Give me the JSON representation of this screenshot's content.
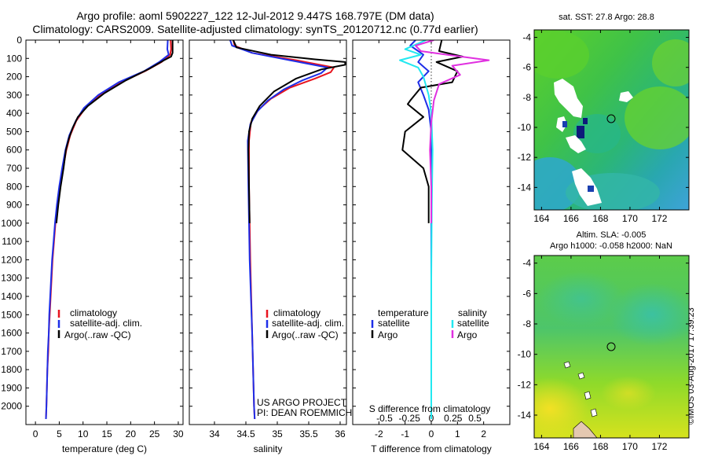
{
  "header": {
    "line1": "Argo profile: aoml 5902227_122 12-Jul-2012 9.447S 168.797E (DM data)",
    "line2": "Climatology: CARS2009. Satellite-adjusted climatology: synTS_20120712.nc (0.77d earlier)"
  },
  "stamp": "©IMOS 03-Aug-2017 17:39:23",
  "colors": {
    "climatology": "#e8141e",
    "satellite": "#1e2ee8",
    "argo": "#000000",
    "sat_salinity": "#22e8f0",
    "argo_salinity": "#e030e0"
  },
  "chart_data": [
    {
      "type": "line",
      "name": "temperature",
      "xlabel": "temperature (deg C)",
      "ylabel": "",
      "xlim": [
        -2,
        31
      ],
      "ylim": [
        2100,
        0
      ],
      "x_ticks": [
        0,
        5,
        10,
        15,
        20,
        25,
        30
      ],
      "y_ticks": [
        0,
        100,
        200,
        300,
        400,
        500,
        600,
        700,
        800,
        900,
        1000,
        1100,
        1200,
        1300,
        1400,
        1500,
        1600,
        1700,
        1800,
        1900,
        2000
      ],
      "legend": [
        "climatology",
        "satellite-adj. clim.",
        "Argo(..raw -QC)"
      ],
      "series": [
        {
          "name": "climatology",
          "color": "climatology",
          "points": [
            [
              28.4,
              0
            ],
            [
              28.5,
              50
            ],
            [
              28.3,
              80
            ],
            [
              26.5,
              120
            ],
            [
              23,
              170
            ],
            [
              18,
              230
            ],
            [
              13.5,
              300
            ],
            [
              10.5,
              370
            ],
            [
              8.6,
              440
            ],
            [
              7.3,
              520
            ],
            [
              6.5,
              600
            ],
            [
              5.8,
              700
            ],
            [
              5.2,
              800
            ],
            [
              4.6,
              900
            ],
            [
              4.2,
              1000
            ],
            [
              3.9,
              1100
            ],
            [
              3.6,
              1200
            ],
            [
              3.4,
              1300
            ],
            [
              3.2,
              1400
            ],
            [
              3,
              1500
            ],
            [
              2.8,
              1600
            ],
            [
              2.7,
              1700
            ],
            [
              2.5,
              1800
            ],
            [
              2.4,
              1900
            ],
            [
              2.3,
              2000
            ],
            [
              2.2,
              2070
            ]
          ]
        },
        {
          "name": "satellite-adj. clim.",
          "color": "satellite",
          "points": [
            [
              27.8,
              0
            ],
            [
              27.7,
              50
            ],
            [
              28,
              80
            ],
            [
              26,
              120
            ],
            [
              22.8,
              170
            ],
            [
              17.5,
              230
            ],
            [
              13.2,
              300
            ],
            [
              10.2,
              370
            ],
            [
              8.5,
              440
            ],
            [
              7.1,
              520
            ],
            [
              6.3,
              600
            ],
            [
              5.6,
              700
            ],
            [
              5,
              800
            ],
            [
              4.5,
              900
            ],
            [
              4.1,
              1000
            ],
            [
              3.8,
              1100
            ],
            [
              3.5,
              1200
            ],
            [
              3.3,
              1300
            ],
            [
              3.1,
              1400
            ],
            [
              2.9,
              1500
            ],
            [
              2.8,
              1600
            ],
            [
              2.6,
              1700
            ],
            [
              2.5,
              1800
            ],
            [
              2.4,
              1900
            ],
            [
              2.3,
              2000
            ],
            [
              2.2,
              2070
            ]
          ]
        },
        {
          "name": "Argo(..raw -QC)",
          "color": "argo",
          "points": [
            [
              28.8,
              0
            ],
            [
              28.8,
              70
            ],
            [
              28.5,
              90
            ],
            [
              27,
              110
            ],
            [
              24,
              155
            ],
            [
              19,
              220
            ],
            [
              14.5,
              290
            ],
            [
              11,
              360
            ],
            [
              8.9,
              420
            ],
            [
              7.8,
              480
            ],
            [
              7,
              540
            ],
            [
              6.4,
              600
            ],
            [
              5.9,
              700
            ],
            [
              5.3,
              800
            ],
            [
              4.8,
              900
            ],
            [
              4.4,
              1000
            ]
          ]
        }
      ]
    },
    {
      "type": "line",
      "name": "salinity",
      "xlabel": "salinity",
      "xlim": [
        33.6,
        36.1
      ],
      "ylim": [
        2100,
        0
      ],
      "x_ticks": [
        34,
        34.5,
        35,
        35.5,
        36
      ],
      "legend": [
        "climatology",
        "satellite-adj. clim.",
        "Argo(..raw -QC)"
      ],
      "annotation": [
        "US ARGO PROJECT",
        "PI: DEAN ROEMMICH"
      ],
      "series": [
        {
          "name": "climatology",
          "color": "climatology",
          "points": [
            [
              34.3,
              0
            ],
            [
              34.32,
              30
            ],
            [
              34.6,
              70
            ],
            [
              35.3,
              110
            ],
            [
              35.9,
              150
            ],
            [
              35.85,
              175
            ],
            [
              35.6,
              210
            ],
            [
              35.2,
              260
            ],
            [
              34.9,
              320
            ],
            [
              34.7,
              380
            ],
            [
              34.58,
              450
            ],
            [
              34.55,
              550
            ],
            [
              34.55,
              800
            ],
            [
              34.57,
              1200
            ],
            [
              34.6,
              1600
            ],
            [
              34.63,
              2000
            ],
            [
              34.64,
              2070
            ]
          ]
        },
        {
          "name": "satellite-adj. clim.",
          "color": "satellite",
          "points": [
            [
              34.25,
              0
            ],
            [
              34.28,
              30
            ],
            [
              34.6,
              70
            ],
            [
              35.2,
              110
            ],
            [
              35.8,
              150
            ],
            [
              35.7,
              180
            ],
            [
              35.4,
              220
            ],
            [
              35.1,
              270
            ],
            [
              34.85,
              330
            ],
            [
              34.68,
              390
            ],
            [
              34.57,
              460
            ],
            [
              34.53,
              550
            ],
            [
              34.54,
              800
            ],
            [
              34.56,
              1200
            ],
            [
              34.6,
              1600
            ],
            [
              34.63,
              2000
            ],
            [
              34.64,
              2070
            ]
          ]
        },
        {
          "name": "Argo(..raw -QC)",
          "color": "argo",
          "points": [
            [
              34.3,
              0
            ],
            [
              34.35,
              40
            ],
            [
              34.9,
              80
            ],
            [
              35.6,
              105
            ],
            [
              36.08,
              120
            ],
            [
              36.08,
              135
            ],
            [
              35.7,
              160
            ],
            [
              35.3,
              210
            ],
            [
              34.95,
              280
            ],
            [
              34.72,
              360
            ],
            [
              34.6,
              430
            ],
            [
              34.55,
              500
            ],
            [
              34.54,
              600
            ],
            [
              34.55,
              800
            ],
            [
              34.56,
              1000
            ]
          ]
        }
      ]
    },
    {
      "type": "line",
      "name": "differences",
      "xlabel": "T difference from climatology",
      "secondary_xlabel": "S difference from climatology",
      "xlim": [
        -3,
        3
      ],
      "ylim": [
        2100,
        0
      ],
      "x_ticks": [
        -2,
        -1,
        0,
        1,
        2
      ],
      "x_tick_labels": [
        "-2",
        "-1",
        "0",
        "1",
        "2"
      ],
      "s_ticks": [
        -0.5,
        -0.25,
        0,
        0.25,
        0.5
      ],
      "s_tick_labels": [
        "-0.5",
        "-0.25",
        "0",
        "0.25",
        "0.5"
      ],
      "legend_temperature": {
        "title": "temperature",
        "items": [
          "satellite",
          "Argo"
        ]
      },
      "legend_salinity": {
        "title": "salinity",
        "items": [
          "satellite",
          "Argo"
        ]
      },
      "series": [
        {
          "name": "T satellite",
          "color": "satellite",
          "points": [
            [
              -0.6,
              0
            ],
            [
              -0.8,
              30
            ],
            [
              -0.3,
              80
            ],
            [
              -0.5,
              120
            ],
            [
              -0.1,
              170
            ],
            [
              -0.5,
              230
            ],
            [
              -0.3,
              300
            ],
            [
              -0.1,
              380
            ],
            [
              0,
              500
            ],
            [
              0,
              800
            ],
            [
              0,
              1200
            ],
            [
              0,
              2000
            ],
            [
              0,
              2070
            ]
          ]
        },
        {
          "name": "T Argo",
          "color": "argo",
          "points": [
            [
              0.4,
              0
            ],
            [
              0.3,
              60
            ],
            [
              1.2,
              90
            ],
            [
              0.2,
              120
            ],
            [
              1,
              170
            ],
            [
              0.8,
              230
            ],
            [
              -0.4,
              260
            ],
            [
              -0.8,
              330
            ],
            [
              -0.9,
              350
            ],
            [
              -0.3,
              420
            ],
            [
              -1,
              500
            ],
            [
              -1.1,
              600
            ],
            [
              -0.3,
              700
            ],
            [
              -0.1,
              800
            ],
            [
              -0.1,
              1000
            ]
          ]
        },
        {
          "name": "S satellite",
          "color": "sat_salinity",
          "points": [
            [
              -0.2,
              0
            ],
            [
              -1,
              50
            ],
            [
              -0.4,
              80
            ],
            [
              -1.2,
              110
            ],
            [
              -0.5,
              150
            ],
            [
              -0.3,
              200
            ],
            [
              -0.1,
              300
            ],
            [
              0,
              400
            ],
            [
              0.05,
              600
            ],
            [
              0.02,
              900
            ],
            [
              0,
              1300
            ],
            [
              0,
              2000
            ],
            [
              0,
              2070
            ]
          ]
        },
        {
          "name": "S Argo",
          "color": "argo_salinity",
          "points": [
            [
              0.1,
              0
            ],
            [
              -0.6,
              30
            ],
            [
              -0.4,
              60
            ],
            [
              0.6,
              80
            ],
            [
              2.2,
              110
            ],
            [
              0.8,
              140
            ],
            [
              1.1,
              190
            ],
            [
              0.3,
              240
            ],
            [
              0.1,
              330
            ],
            [
              0,
              450
            ],
            [
              -0.05,
              600
            ],
            [
              0,
              800
            ],
            [
              0,
              1000
            ]
          ]
        }
      ]
    },
    {
      "type": "heatmap",
      "name": "sst_map",
      "title": "sat. SST: 27.8 Argo: 28.8",
      "xlim": [
        163.5,
        174
      ],
      "ylim": [
        -15.5,
        -3.5
      ],
      "x_ticks": [
        164,
        166,
        168,
        170,
        172
      ],
      "y_ticks": [
        -4,
        -6,
        -8,
        -10,
        -12,
        -14
      ],
      "marker": {
        "lon": 168.8,
        "lat": -9.45
      }
    },
    {
      "type": "heatmap",
      "name": "sla_map",
      "title": "Altim. SLA: -0.005",
      "subtitle": "Argo h1000: -0.058 h2000: NaN",
      "xlim": [
        163.5,
        174
      ],
      "ylim": [
        -15.5,
        -3.5
      ],
      "x_ticks": [
        164,
        166,
        168,
        170,
        172
      ],
      "y_ticks": [
        -4,
        -6,
        -8,
        -10,
        -12,
        -14
      ],
      "marker": {
        "lon": 168.8,
        "lat": -9.45
      }
    }
  ]
}
